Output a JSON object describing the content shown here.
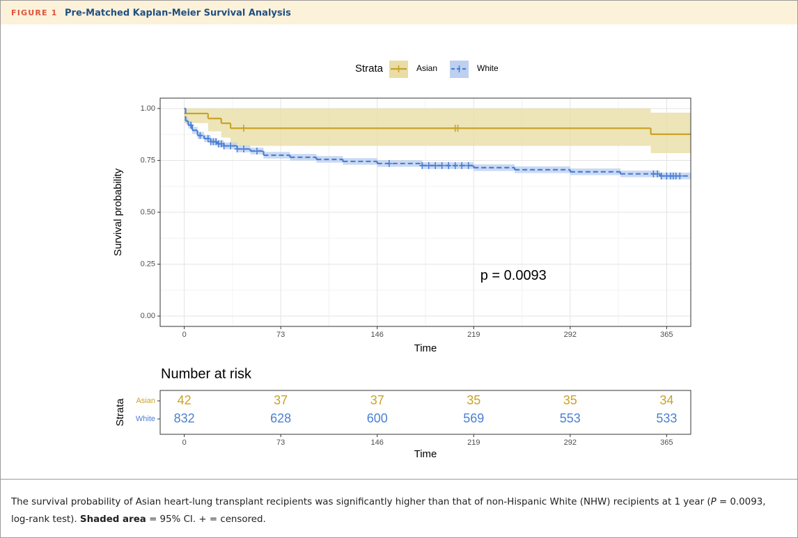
{
  "header": {
    "label": "FIGURE 1",
    "title": "Pre-Matched Kaplan-Meier Survival Analysis"
  },
  "chart_data": {
    "type": "km",
    "xlabel": "Time",
    "ylabel": "Survival probability",
    "legend_title": "Strata",
    "annotation": "p = 0.0093",
    "xlim": [
      -18.25,
      383.25
    ],
    "xticks": [
      0,
      73,
      146,
      219,
      292,
      365
    ],
    "ylim": [
      -0.05,
      1.05
    ],
    "yticks": [
      {
        "value": 0,
        "label": "0.00"
      },
      {
        "value": 0.25,
        "label": "0.25"
      },
      {
        "value": 0.5,
        "label": "0.50"
      },
      {
        "value": 0.75,
        "label": "0.75"
      },
      {
        "value": 1,
        "label": "1.00"
      }
    ],
    "grid": true,
    "series": [
      {
        "name": "Asian",
        "color": "#c9a227",
        "band_color": "#e9dda5",
        "linetype": "solid",
        "x": [
          0,
          18,
          28,
          35,
          353
        ],
        "values": [
          0.976,
          0.952,
          0.929,
          0.905,
          0.876
        ],
        "ci_upper": [
          1,
          1,
          1,
          1,
          0.98
        ],
        "ci_lower": [
          0.93,
          0.89,
          0.86,
          0.82,
          0.785
        ],
        "censored": [
          45,
          205,
          207
        ]
      },
      {
        "name": "White",
        "color": "#4a7fd4",
        "band_color": "#bdd0f0",
        "linetype": "dashed",
        "x": [
          0,
          1,
          3,
          6,
          10,
          15,
          20,
          25,
          30,
          40,
          50,
          60,
          80,
          100,
          120,
          146,
          180,
          219,
          250,
          292,
          330,
          360
        ],
        "values": [
          1.0,
          0.94,
          0.92,
          0.895,
          0.87,
          0.855,
          0.84,
          0.83,
          0.82,
          0.805,
          0.795,
          0.775,
          0.765,
          0.755,
          0.745,
          0.735,
          0.725,
          0.715,
          0.705,
          0.695,
          0.685,
          0.675
        ],
        "ci_upper": [
          1.0,
          0.955,
          0.937,
          0.912,
          0.887,
          0.872,
          0.857,
          0.847,
          0.836,
          0.821,
          0.811,
          0.791,
          0.781,
          0.771,
          0.761,
          0.751,
          0.741,
          0.731,
          0.721,
          0.711,
          0.701,
          0.691
        ],
        "ci_lower": [
          1.0,
          0.925,
          0.903,
          0.878,
          0.853,
          0.838,
          0.823,
          0.813,
          0.804,
          0.789,
          0.779,
          0.759,
          0.749,
          0.739,
          0.729,
          0.719,
          0.709,
          0.699,
          0.689,
          0.679,
          0.669,
          0.659
        ],
        "censored": [
          5,
          12,
          18,
          20,
          22,
          24,
          26,
          28,
          30,
          35,
          40,
          45,
          55,
          155,
          180,
          185,
          190,
          195,
          200,
          205,
          210,
          215,
          355,
          358,
          361,
          365,
          368,
          370,
          372,
          375
        ]
      }
    ],
    "risk_table": {
      "title": "Number at risk",
      "ylabel": "Strata",
      "xlabel": "Time",
      "rows": [
        {
          "name": "Asian",
          "counts": [
            42,
            37,
            37,
            35,
            35,
            34
          ]
        },
        {
          "name": "White",
          "counts": [
            832,
            628,
            600,
            569,
            553,
            533
          ]
        }
      ]
    }
  },
  "caption": [
    "The survival probability of Asian heart-lung transplant recipients was significantly higher than that of non-Hispanic White (NHW) recipients at 1 year (",
    "P",
    " = 0.0093, log-rank test). ",
    "Shaded area",
    " = 95% CI. + = censored."
  ]
}
